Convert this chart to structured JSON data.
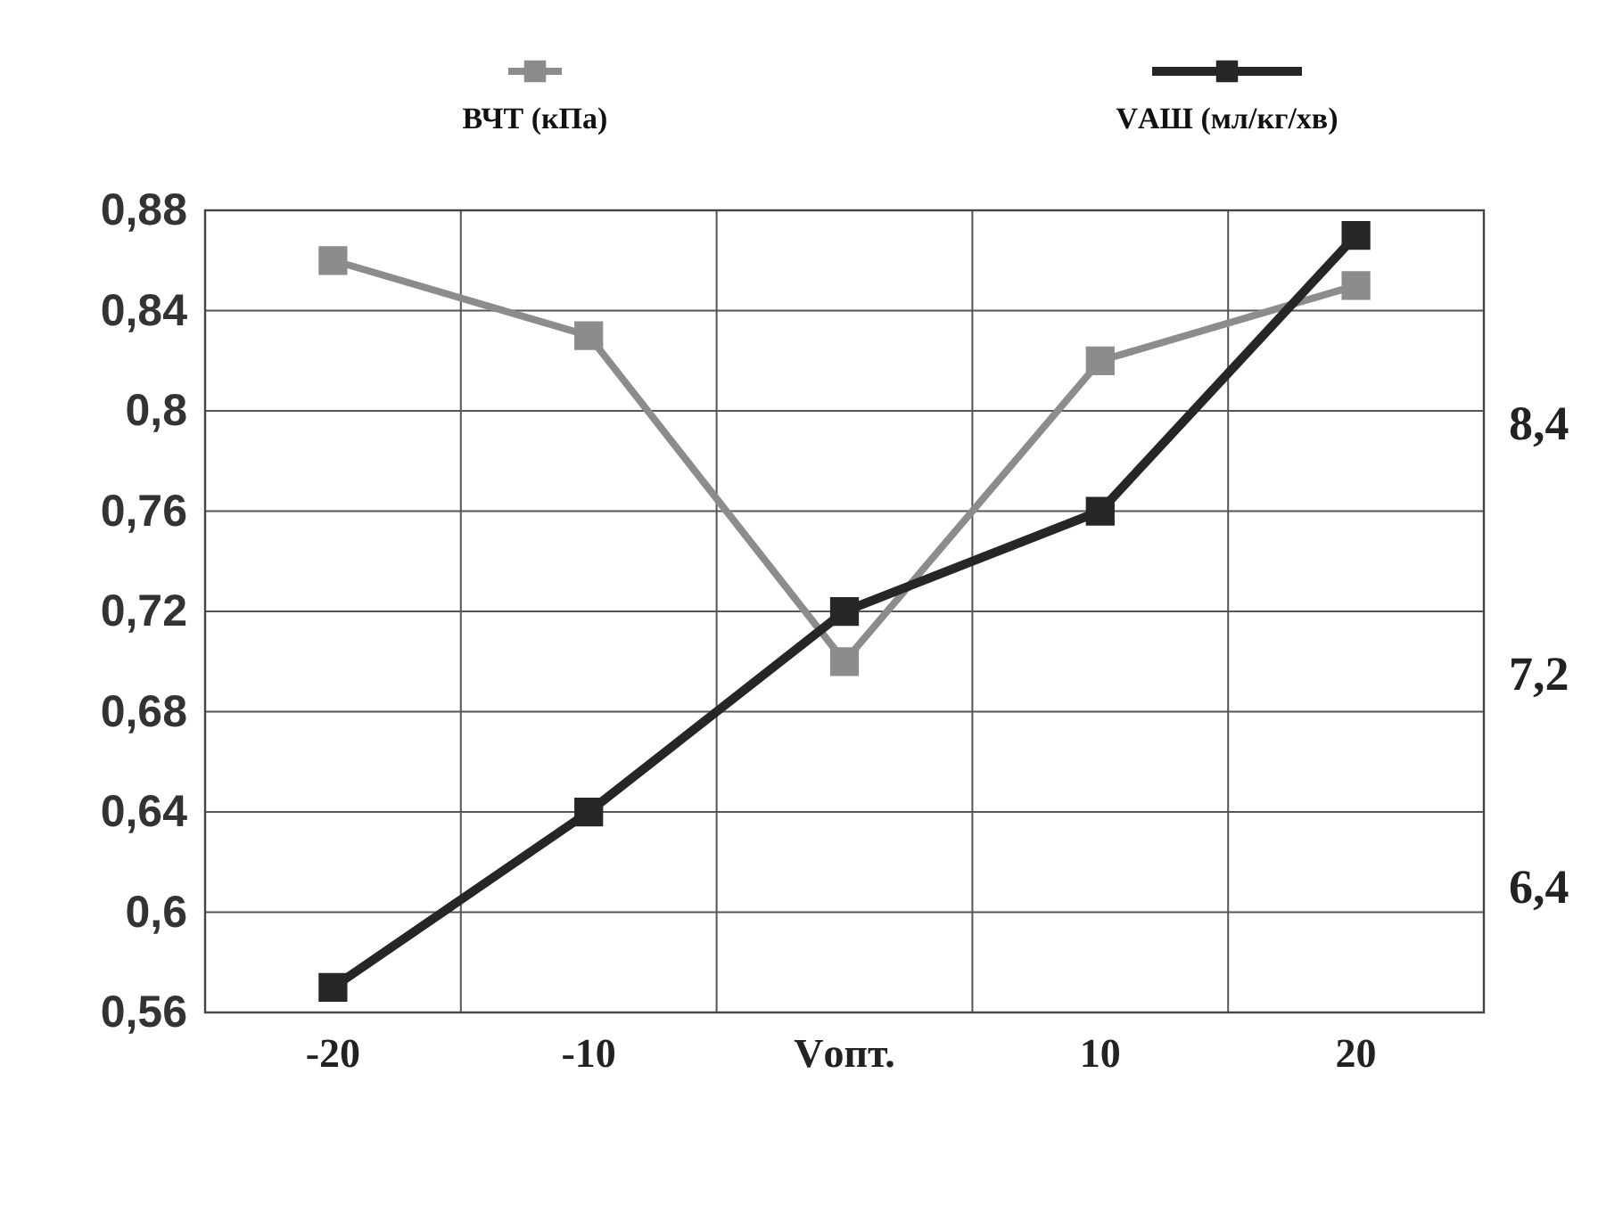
{
  "chart_data": {
    "type": "line",
    "categories": [
      "-20",
      "-10",
      "Vопт.",
      "10",
      "20"
    ],
    "series": [
      {
        "name": "ВЧТ (кПа)",
        "color": "#8c8c8c",
        "values": [
          0.86,
          0.83,
          0.7,
          0.82,
          0.85
        ]
      },
      {
        "name": "VАШ (мл/кг/хв)",
        "color": "#262626",
        "values": [
          0.57,
          0.64,
          0.72,
          0.76,
          0.87
        ]
      }
    ],
    "ylim": [
      0.56,
      0.88
    ],
    "yticks": [
      {
        "value": 0.56,
        "label": "0,56"
      },
      {
        "value": 0.6,
        "label": "0,6"
      },
      {
        "value": 0.64,
        "label": "0,64"
      },
      {
        "value": 0.68,
        "label": "0,68"
      },
      {
        "value": 0.72,
        "label": "0,72"
      },
      {
        "value": 0.76,
        "label": "0,76"
      },
      {
        "value": 0.8,
        "label": "0,8"
      },
      {
        "value": 0.84,
        "label": "0,84"
      },
      {
        "value": 0.88,
        "label": "0,88"
      }
    ],
    "annotations": [
      "8,4",
      "7,2",
      "6,4"
    ],
    "grid": true,
    "legend": "top",
    "marker": "square",
    "line_style": "solid"
  }
}
